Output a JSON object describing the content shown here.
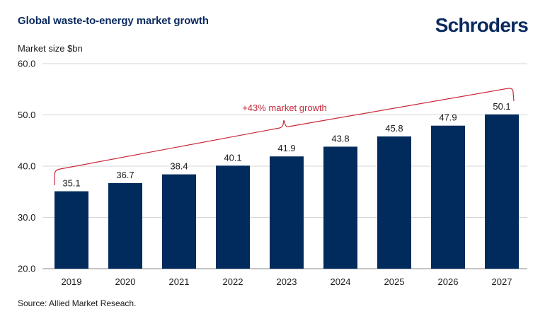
{
  "title": "Global waste-to-energy market growth",
  "brand": "Schroders",
  "source": "Source: Allied Market Reseach.",
  "colors": {
    "bar": "#002b5c",
    "annotation": "#c8283a",
    "grid": "#d6d6d6",
    "text": "#0a2a5e"
  },
  "chart_data": {
    "type": "bar",
    "categories": [
      "2019",
      "2020",
      "2021",
      "2022",
      "2023",
      "2024",
      "2025",
      "2026",
      "2027"
    ],
    "values": [
      35.1,
      36.7,
      38.4,
      40.1,
      41.9,
      43.8,
      45.8,
      47.9,
      50.1
    ],
    "value_labels": [
      "35.1",
      "36.7",
      "38.4",
      "40.1",
      "41.9",
      "43.8",
      "45.8",
      "47.9",
      "50.1"
    ],
    "ylabel": "Market size $bn",
    "ylim": [
      20,
      60
    ],
    "yticks": [
      "20.0",
      "30.0",
      "40.0",
      "50.0",
      "60.0"
    ],
    "ytick_values": [
      20,
      30,
      40,
      50,
      60
    ],
    "grid": true,
    "annotation": "+43% market growth"
  }
}
